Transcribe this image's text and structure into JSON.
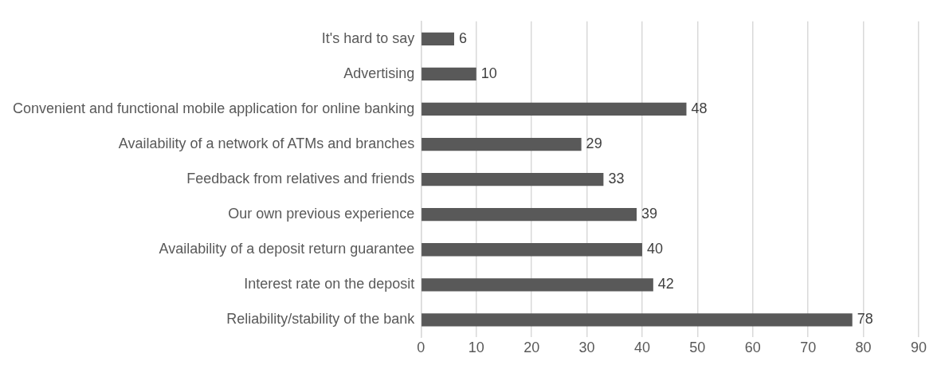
{
  "chart_data": {
    "type": "bar",
    "orientation": "horizontal",
    "categories": [
      "It's hard to say",
      "Advertising",
      "Convenient and functional mobile application for online banking",
      "Availability of a network of ATMs and branches",
      "Feedback from relatives and friends",
      "Our own previous experience",
      "Availability of a deposit return guarantee",
      "Interest rate on the deposit",
      "Reliability/stability of the bank"
    ],
    "values": [
      6,
      10,
      48,
      29,
      33,
      39,
      40,
      42,
      78
    ],
    "color": "#595959",
    "xlim": [
      0,
      90
    ],
    "xticks": [
      0,
      10,
      20,
      30,
      40,
      50,
      60,
      70,
      80,
      90
    ],
    "grid": "x",
    "data_labels": true,
    "legend": false
  }
}
